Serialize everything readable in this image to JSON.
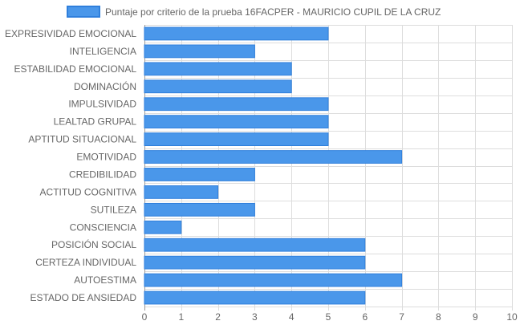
{
  "chart_data": {
    "type": "bar",
    "orientation": "horizontal",
    "categories": [
      "EXPRESIVIDAD EMOCIONAL",
      "INTELIGENCIA",
      "ESTABILIDAD EMOCIONAL",
      "DOMINACIÓN",
      "IMPULSIVIDAD",
      "LEALTAD GRUPAL",
      "APTITUD SITUACIONAL",
      "EMOTIVIDAD",
      "CREDIBILIDAD",
      "ACTITUD COGNITIVA",
      "SUTILEZA",
      "CONSCIENCIA",
      "POSICIÓN SOCIAL",
      "CERTEZA INDIVIDUAL",
      "AUTOESTIMA",
      "ESTADO DE ANSIEDAD"
    ],
    "series": [
      {
        "name": "Puntaje por criterio de la prueba 16FACPER - MAURICIO CUPIL DE LA CRUZ",
        "values": [
          5,
          3,
          4,
          4,
          5,
          5,
          5,
          7,
          3,
          2,
          3,
          1,
          6,
          6,
          7,
          6
        ],
        "color": "#4a97ea"
      }
    ],
    "xlim": [
      0,
      10
    ],
    "xticks": [
      "0",
      "1",
      "2",
      "3",
      "4",
      "5",
      "6",
      "7",
      "8",
      "9",
      "10"
    ],
    "grid": true,
    "legend_position": "top"
  },
  "colors": {
    "bar_fill": "#4a97ea",
    "bar_stroke": "#2f7fdc",
    "grid": "#dddddd",
    "axis": "#999999"
  }
}
